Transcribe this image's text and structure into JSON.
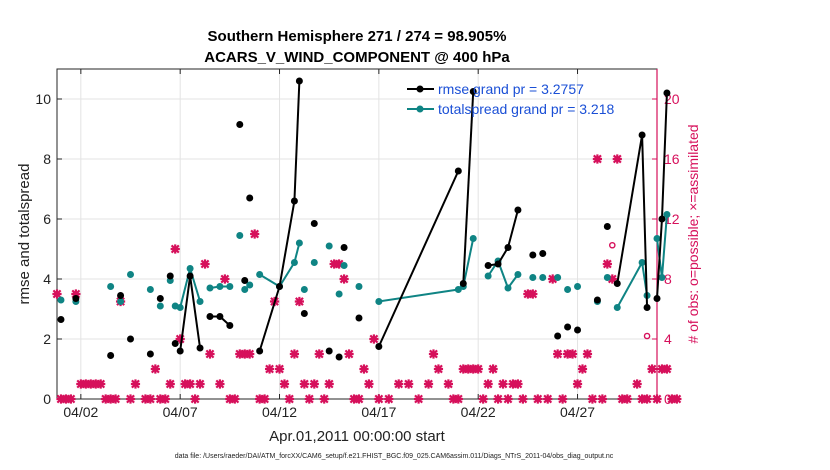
{
  "chart_data": {
    "type": "line",
    "title": "Southern Hemisphere 271 / 274 = 98.905%",
    "subtitle": "ACARS_V_WIND_COMPONENT @ 400 hPa",
    "xlabel": "Apr.01,2011 00:00:00 start",
    "ylabel_left": "rmse and totalspread",
    "ylabel_right": "# of obs: o=possible; ×=assimilated",
    "xlim": [
      0.8,
      31.0
    ],
    "ylim_left": [
      0,
      11
    ],
    "ylim_right": [
      0,
      22
    ],
    "xticks": [
      {
        "x": 2,
        "label": "04/02"
      },
      {
        "x": 7,
        "label": "04/07"
      },
      {
        "x": 12,
        "label": "04/12"
      },
      {
        "x": 17,
        "label": "04/17"
      },
      {
        "x": 22,
        "label": "04/22"
      },
      {
        "x": 27,
        "label": "04/27"
      }
    ],
    "yticks_left": [
      0,
      2,
      4,
      6,
      8,
      10
    ],
    "yticks_right": [
      0,
      4,
      8,
      12,
      16,
      20
    ],
    "grid": true,
    "legend_position": "top-right",
    "series": [
      {
        "name": "rmse grand pr = 3.2757",
        "color": "#000000",
        "points": [
          [
            1.0,
            2.65
          ],
          [
            1.75,
            3.35
          ],
          [
            3.5,
            1.45
          ],
          [
            4.0,
            3.45
          ],
          [
            4.5,
            2.0
          ],
          [
            5.5,
            1.5
          ],
          [
            6.0,
            3.35
          ],
          [
            6.5,
            4.1
          ],
          [
            6.75,
            1.85
          ],
          [
            7.0,
            1.6
          ],
          [
            7.5,
            4.1
          ],
          [
            8.0,
            1.7
          ],
          [
            8.5,
            2.75
          ],
          [
            9.0,
            2.75
          ],
          [
            9.5,
            2.45
          ],
          [
            10.0,
            9.15
          ],
          [
            10.25,
            3.95
          ],
          [
            10.5,
            6.7
          ],
          [
            11.0,
            1.6
          ],
          [
            12.0,
            3.75
          ],
          [
            12.75,
            6.6
          ],
          [
            13.0,
            10.6
          ],
          [
            13.25,
            2.85
          ],
          [
            13.75,
            5.85
          ],
          [
            14.5,
            1.6
          ],
          [
            15.0,
            1.4
          ],
          [
            15.25,
            5.05
          ],
          [
            16.0,
            2.7
          ],
          [
            17.0,
            1.75
          ],
          [
            21.0,
            7.6
          ],
          [
            21.25,
            3.85
          ],
          [
            21.75,
            10.25
          ],
          [
            22.5,
            4.45
          ],
          [
            23.0,
            4.5
          ],
          [
            23.5,
            5.05
          ],
          [
            24.0,
            6.3
          ],
          [
            24.75,
            4.8
          ],
          [
            25.25,
            4.85
          ],
          [
            26.0,
            2.1
          ],
          [
            26.5,
            2.4
          ],
          [
            27.0,
            2.3
          ],
          [
            28.0,
            3.3
          ],
          [
            28.5,
            5.75
          ],
          [
            29.0,
            3.85
          ],
          [
            30.25,
            8.8
          ],
          [
            30.5,
            3.05
          ],
          [
            31.0,
            3.35
          ],
          [
            31.25,
            6.0
          ],
          [
            31.5,
            10.2
          ]
        ],
        "segments": [
          [
            9,
            11
          ],
          [
            12,
            14
          ],
          [
            18,
            20
          ],
          [
            20,
            21
          ],
          [
            28,
            29
          ],
          [
            30,
            31
          ],
          [
            32,
            35
          ],
          [
            43,
            45
          ],
          [
            46,
            49
          ]
        ]
      },
      {
        "name": "totalspread grand pr = 3.218",
        "color": "#0f8484",
        "points": [
          [
            1.0,
            3.3
          ],
          [
            1.75,
            3.25
          ],
          [
            3.5,
            3.75
          ],
          [
            4.0,
            3.25
          ],
          [
            4.5,
            4.15
          ],
          [
            5.5,
            3.65
          ],
          [
            6.0,
            3.1
          ],
          [
            6.5,
            3.95
          ],
          [
            6.75,
            3.1
          ],
          [
            7.0,
            3.05
          ],
          [
            7.5,
            4.35
          ],
          [
            8.0,
            3.25
          ],
          [
            8.5,
            3.7
          ],
          [
            9.0,
            3.75
          ],
          [
            9.5,
            3.75
          ],
          [
            10.0,
            5.45
          ],
          [
            10.25,
            3.65
          ],
          [
            10.5,
            3.8
          ],
          [
            11.0,
            4.15
          ],
          [
            12.0,
            3.75
          ],
          [
            12.75,
            4.55
          ],
          [
            13.0,
            5.2
          ],
          [
            13.25,
            3.65
          ],
          [
            13.75,
            4.55
          ],
          [
            14.5,
            5.1
          ],
          [
            15.0,
            3.5
          ],
          [
            15.25,
            4.45
          ],
          [
            16.0,
            3.75
          ],
          [
            17.0,
            3.25
          ],
          [
            21.0,
            3.65
          ],
          [
            21.25,
            3.75
          ],
          [
            21.75,
            5.35
          ],
          [
            22.5,
            4.1
          ],
          [
            23.0,
            4.6
          ],
          [
            23.5,
            3.7
          ],
          [
            24.0,
            4.15
          ],
          [
            24.75,
            4.05
          ],
          [
            25.25,
            4.05
          ],
          [
            26.0,
            4.05
          ],
          [
            26.5,
            3.65
          ],
          [
            27.0,
            3.75
          ],
          [
            28.0,
            3.25
          ],
          [
            28.5,
            4.05
          ],
          [
            29.0,
            3.05
          ],
          [
            30.25,
            4.55
          ],
          [
            30.5,
            3.45
          ],
          [
            31.0,
            5.35
          ],
          [
            31.25,
            4.05
          ],
          [
            31.5,
            6.15
          ]
        ],
        "segments": [
          [
            9,
            11
          ],
          [
            12,
            14
          ],
          [
            18,
            20
          ],
          [
            20,
            21
          ],
          [
            28,
            29
          ],
          [
            30,
            31
          ],
          [
            32,
            35
          ],
          [
            43,
            45
          ],
          [
            46,
            49
          ]
        ]
      },
      {
        "name": "obs possible",
        "color": "#d6105b",
        "marker": "o",
        "points": [
          [
            28.75,
            10.25
          ],
          [
            30.5,
            4.2
          ]
        ]
      },
      {
        "name": "obs assimilated",
        "color": "#d6105b",
        "marker": "x",
        "points": [
          [
            0.8,
            7.0
          ],
          [
            1.0,
            0.0
          ],
          [
            1.25,
            0.0
          ],
          [
            1.5,
            0.0
          ],
          [
            1.75,
            7.0
          ],
          [
            2.0,
            1.0
          ],
          [
            2.25,
            1.0
          ],
          [
            2.5,
            1.0
          ],
          [
            2.75,
            1.0
          ],
          [
            3.0,
            1.0
          ],
          [
            3.25,
            0.0
          ],
          [
            3.5,
            0.0
          ],
          [
            3.75,
            0.0
          ],
          [
            4.0,
            6.5
          ],
          [
            4.5,
            0.0
          ],
          [
            4.75,
            1.0
          ],
          [
            5.25,
            0.0
          ],
          [
            5.5,
            0.0
          ],
          [
            5.75,
            2.0
          ],
          [
            6.0,
            0.0
          ],
          [
            6.25,
            0.0
          ],
          [
            6.5,
            1.0
          ],
          [
            6.75,
            10.0
          ],
          [
            7.0,
            4.0
          ],
          [
            7.25,
            1.0
          ],
          [
            7.5,
            1.0
          ],
          [
            7.75,
            0.0
          ],
          [
            8.0,
            1.0
          ],
          [
            8.25,
            9.0
          ],
          [
            8.5,
            3.0
          ],
          [
            9.0,
            1.0
          ],
          [
            9.25,
            8.0
          ],
          [
            9.5,
            0.0
          ],
          [
            9.75,
            0.0
          ],
          [
            10.0,
            3.0
          ],
          [
            10.25,
            3.0
          ],
          [
            10.5,
            3.0
          ],
          [
            10.75,
            11.0
          ],
          [
            11.0,
            0.0
          ],
          [
            11.25,
            0.0
          ],
          [
            11.5,
            2.0
          ],
          [
            11.75,
            6.5
          ],
          [
            12.0,
            2.0
          ],
          [
            12.25,
            1.0
          ],
          [
            12.5,
            0.0
          ],
          [
            12.75,
            3.0
          ],
          [
            13.0,
            6.5
          ],
          [
            13.25,
            1.0
          ],
          [
            13.5,
            0.0
          ],
          [
            13.75,
            1.0
          ],
          [
            14.0,
            3.0
          ],
          [
            14.25,
            0.0
          ],
          [
            14.5,
            1.0
          ],
          [
            14.75,
            9.0
          ],
          [
            15.0,
            9.0
          ],
          [
            15.25,
            8.0
          ],
          [
            15.5,
            3.0
          ],
          [
            15.75,
            0.0
          ],
          [
            16.0,
            0.0
          ],
          [
            16.25,
            2.0
          ],
          [
            16.5,
            1.0
          ],
          [
            16.75,
            4.0
          ],
          [
            17.0,
            0.0
          ],
          [
            17.5,
            0.0
          ],
          [
            18.0,
            1.0
          ],
          [
            18.5,
            1.0
          ],
          [
            19.0,
            0.0
          ],
          [
            19.5,
            1.0
          ],
          [
            19.75,
            3.0
          ],
          [
            20.0,
            2.0
          ],
          [
            20.5,
            1.0
          ],
          [
            20.75,
            0.0
          ],
          [
            21.0,
            0.0
          ],
          [
            21.25,
            2.0
          ],
          [
            21.5,
            2.0
          ],
          [
            21.75,
            2.0
          ],
          [
            22.0,
            2.0
          ],
          [
            22.25,
            0.0
          ],
          [
            22.5,
            1.0
          ],
          [
            22.75,
            2.0
          ],
          [
            23.0,
            0.0
          ],
          [
            23.25,
            1.0
          ],
          [
            23.5,
            0.0
          ],
          [
            23.75,
            1.0
          ],
          [
            24.0,
            1.0
          ],
          [
            24.25,
            0.0
          ],
          [
            24.5,
            7.0
          ],
          [
            24.75,
            7.0
          ],
          [
            25.0,
            0.0
          ],
          [
            25.5,
            0.0
          ],
          [
            25.75,
            8.0
          ],
          [
            26.0,
            3.0
          ],
          [
            26.25,
            0.0
          ],
          [
            26.5,
            3.0
          ],
          [
            26.75,
            3.0
          ],
          [
            27.0,
            1.0
          ],
          [
            27.25,
            2.0
          ],
          [
            27.5,
            3.0
          ],
          [
            27.75,
            0.0
          ],
          [
            28.0,
            16.0
          ],
          [
            28.25,
            0.0
          ],
          [
            28.5,
            9.0
          ],
          [
            28.75,
            8.0
          ],
          [
            29.0,
            16.0
          ],
          [
            29.25,
            0.0
          ],
          [
            29.5,
            0.0
          ],
          [
            30.0,
            1.0
          ],
          [
            30.25,
            0.0
          ],
          [
            30.5,
            0.0
          ],
          [
            30.75,
            2.0
          ],
          [
            31.0,
            0.0
          ],
          [
            31.25,
            2.0
          ],
          [
            31.5,
            2.0
          ],
          [
            31.75,
            0.0
          ],
          [
            32.0,
            0.0
          ]
        ]
      }
    ]
  },
  "footer": "data file: /Users/raeder/DAI/ATM_forcXX/CAM6_setup/f.e21.FHIST_BGC.f09_025.CAM6assim.011/Diags_NTrS_2011-04/obs_diag_output.nc"
}
